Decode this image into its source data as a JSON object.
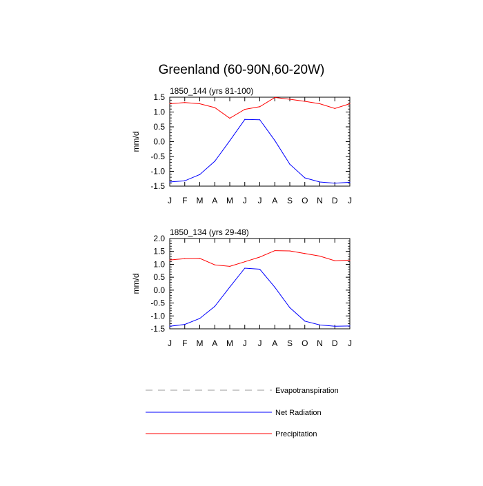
{
  "title": "Greenland (60-90N,60-20W)",
  "chart_data": [
    {
      "type": "line",
      "title": "1850_144 (yrs 81-100)",
      "ylabel": "mm/d",
      "xlabel": "",
      "categories": [
        "J",
        "F",
        "M",
        "A",
        "M",
        "J",
        "J",
        "A",
        "S",
        "O",
        "N",
        "D",
        "J"
      ],
      "ylim": [
        -1.5,
        1.5
      ],
      "yticks": [
        "1.5",
        "1.0",
        "0.5",
        "0.0",
        "-0.5",
        "-1.0",
        "-1.5"
      ],
      "ytick_values": [
        1.5,
        1.0,
        0.5,
        0.0,
        -0.5,
        -1.0,
        -1.5
      ],
      "series": [
        {
          "name": "Net Radiation",
          "color": "#0000ff",
          "values": [
            -1.36,
            -1.32,
            -1.11,
            -0.66,
            0.03,
            0.75,
            0.74,
            0.04,
            -0.76,
            -1.22,
            -1.36,
            -1.4,
            -1.37
          ]
        },
        {
          "name": "Precipitation",
          "color": "#ff0000",
          "values": [
            1.28,
            1.32,
            1.28,
            1.15,
            0.79,
            1.09,
            1.18,
            1.49,
            1.43,
            1.36,
            1.28,
            1.12,
            1.28
          ]
        }
      ]
    },
    {
      "type": "line",
      "title": "1850_134 (yrs 29-48)",
      "ylabel": "mm/d",
      "xlabel": "",
      "categories": [
        "J",
        "F",
        "M",
        "A",
        "M",
        "J",
        "J",
        "A",
        "S",
        "O",
        "N",
        "D",
        "J"
      ],
      "ylim": [
        -1.5,
        2.0
      ],
      "yticks": [
        "2.0",
        "1.5",
        "1.0",
        "0.5",
        "0.0",
        "-0.5",
        "-1.0",
        "-1.5"
      ],
      "ytick_values": [
        2.0,
        1.5,
        1.0,
        0.5,
        0.0,
        -0.5,
        -1.0,
        -1.5
      ],
      "series": [
        {
          "name": "Net Radiation",
          "color": "#0000ff",
          "values": [
            -1.4,
            -1.33,
            -1.1,
            -0.63,
            0.12,
            0.85,
            0.81,
            0.11,
            -0.68,
            -1.2,
            -1.35,
            -1.4,
            -1.39
          ]
        },
        {
          "name": "Precipitation",
          "color": "#ff0000",
          "values": [
            1.17,
            1.22,
            1.23,
            0.98,
            0.92,
            1.1,
            1.28,
            1.53,
            1.52,
            1.42,
            1.32,
            1.14,
            1.16
          ]
        }
      ]
    }
  ],
  "legend": [
    {
      "label": "Evapotranspiration",
      "color": "#999999",
      "style": "dashed"
    },
    {
      "label": "Net Radiation",
      "color": "#0000ff",
      "style": "solid"
    },
    {
      "label": "Precipitation",
      "color": "#ff0000",
      "style": "solid"
    }
  ]
}
